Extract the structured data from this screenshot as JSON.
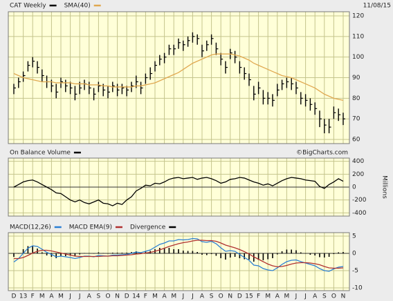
{
  "chart_data": [
    {
      "type": "ohlc",
      "date": "11/08/15",
      "series": [
        {
          "name": "CAT Weekly",
          "color": "#000000",
          "high": [
            87,
            90,
            93,
            98,
            100,
            98,
            94,
            91,
            89,
            87,
            90,
            89,
            88,
            86,
            88,
            89,
            88,
            85,
            88,
            87,
            86,
            88,
            87,
            87,
            86,
            88,
            91,
            88,
            92,
            95,
            98,
            101,
            102,
            106,
            106,
            109,
            108,
            110,
            112,
            111,
            106,
            108,
            111,
            107,
            102,
            98,
            104,
            103,
            98,
            95,
            92,
            86,
            88,
            84,
            83,
            82,
            87,
            89,
            90,
            90,
            88,
            83,
            82,
            80,
            78,
            74,
            70,
            70,
            76,
            75,
            73
          ],
          "low": [
            82,
            85,
            88,
            93,
            95,
            92,
            88,
            85,
            83,
            80,
            85,
            83,
            82,
            79,
            82,
            84,
            82,
            79,
            83,
            81,
            80,
            83,
            81,
            82,
            81,
            83,
            85,
            82,
            87,
            89,
            93,
            96,
            97,
            101,
            101,
            104,
            103,
            105,
            107,
            106,
            100,
            103,
            106,
            101,
            96,
            92,
            99,
            97,
            92,
            89,
            86,
            79,
            82,
            77,
            77,
            76,
            81,
            84,
            85,
            84,
            82,
            77,
            76,
            74,
            72,
            66,
            63,
            63,
            70,
            69,
            67
          ],
          "close": [
            85,
            88,
            91,
            96,
            98,
            95,
            91,
            88,
            86,
            83,
            88,
            86,
            85,
            82,
            85,
            87,
            85,
            82,
            86,
            84,
            83,
            86,
            84,
            85,
            84,
            86,
            88,
            85,
            90,
            92,
            96,
            99,
            100,
            104,
            104,
            107,
            106,
            108,
            110,
            109,
            103,
            106,
            109,
            104,
            99,
            95,
            102,
            100,
            95,
            92,
            89,
            82,
            85,
            80,
            80,
            79,
            84,
            87,
            88,
            87,
            85,
            80,
            79,
            77,
            75,
            70,
            67,
            66,
            73,
            72,
            70
          ]
        },
        {
          "name": "SMA(40)",
          "color": "#e0a850",
          "values": [
            92,
            91,
            90,
            89.5,
            89,
            88.5,
            88,
            88,
            88,
            87.5,
            87.5,
            87.5,
            87.5,
            87,
            87,
            87,
            86.5,
            86.5,
            86.5,
            86,
            86,
            85.5,
            85.5,
            85.5,
            85.5,
            85.5,
            86,
            86,
            86.5,
            87,
            87.5,
            88.5,
            89.5,
            90.5,
            91.5,
            92.5,
            94,
            95.5,
            97,
            98,
            99,
            100,
            101,
            101.5,
            101.5,
            101.5,
            101.5,
            101,
            100.5,
            99.5,
            98.5,
            97,
            96,
            95,
            94,
            93,
            92,
            91,
            90.5,
            90,
            89,
            88,
            87,
            86,
            85,
            83.5,
            82,
            81,
            80,
            79.5,
            79
          ]
        }
      ],
      "ylim": [
        58,
        122
      ],
      "yticks": [
        60,
        70,
        80,
        90,
        100,
        110,
        120
      ],
      "grid": true
    },
    {
      "type": "line",
      "credit": "©BigCharts.com",
      "ylabel": "Millions",
      "series": [
        {
          "name": "On Balance Volume",
          "color": "#000000",
          "values": [
            0,
            40,
            80,
            100,
            110,
            80,
            40,
            0,
            -40,
            -90,
            -100,
            -150,
            -200,
            -230,
            -200,
            -240,
            -260,
            -230,
            -200,
            -250,
            -260,
            -290,
            -250,
            -270,
            -200,
            -150,
            -60,
            -20,
            30,
            20,
            60,
            50,
            80,
            120,
            140,
            150,
            130,
            140,
            150,
            120,
            140,
            150,
            130,
            100,
            60,
            80,
            120,
            130,
            150,
            140,
            110,
            80,
            60,
            30,
            50,
            20,
            60,
            100,
            130,
            150,
            140,
            130,
            110,
            100,
            90,
            10,
            -20,
            40,
            80,
            130,
            90
          ]
        }
      ],
      "ylim": [
        -450,
        450
      ],
      "yticks": [
        -400,
        -200,
        0,
        200,
        400
      ],
      "grid": true
    },
    {
      "type": "line",
      "categories": [
        "D",
        null,
        "13",
        null,
        "F",
        null,
        "M",
        null,
        "A",
        null,
        "M",
        null,
        "J",
        null,
        "J",
        null,
        "A",
        null,
        "S",
        null,
        "O",
        null,
        "N",
        null,
        "D",
        null,
        "14",
        null,
        "F",
        null,
        "M",
        null,
        "A",
        null,
        "M",
        null,
        "J",
        null,
        "J",
        null,
        "A",
        null,
        "S",
        null,
        "O",
        null,
        "N",
        null,
        "D",
        null,
        "15",
        null,
        "F",
        null,
        "M",
        null,
        "A",
        null,
        "M",
        null,
        "J",
        null,
        "J",
        null,
        "A",
        null,
        "S",
        null,
        "O",
        null,
        "N"
      ],
      "series": [
        {
          "name": "MACD(12,26)",
          "color": "#2a7fd4",
          "values": [
            -2.5,
            -1.5,
            0,
            1.5,
            2.2,
            2,
            1.2,
            0.3,
            -0.3,
            -1,
            -0.8,
            -1,
            -1.2,
            -1.5,
            -1.2,
            -0.8,
            -0.8,
            -1,
            -0.6,
            -0.7,
            -0.8,
            -0.5,
            -0.5,
            -0.4,
            -0.3,
            0,
            0.4,
            0.2,
            0.6,
            1,
            1.8,
            2.6,
            3,
            3.6,
            3.6,
            4,
            3.9,
            4,
            4.3,
            4.2,
            3.4,
            3.2,
            3.5,
            2.8,
            1.6,
            0.6,
            0.8,
            0.6,
            -0.3,
            -1.2,
            -2,
            -3.4,
            -3.6,
            -4.4,
            -4.8,
            -5,
            -4.2,
            -3.2,
            -2.4,
            -2,
            -1.9,
            -2.4,
            -2.8,
            -3.2,
            -3.6,
            -4.4,
            -5,
            -5.2,
            -4.5,
            -4,
            -3.8
          ]
        },
        {
          "name": "MACD EMA(9)",
          "color": "#b03030",
          "values": [
            -1.5,
            -1.5,
            -1.2,
            -0.6,
            0.1,
            0.6,
            0.9,
            0.9,
            0.7,
            0.4,
            0.1,
            -0.2,
            -0.5,
            -0.8,
            -0.9,
            -0.9,
            -0.9,
            -0.9,
            -0.9,
            -0.8,
            -0.8,
            -0.7,
            -0.7,
            -0.6,
            -0.5,
            -0.4,
            -0.2,
            -0.1,
            0.1,
            0.3,
            0.6,
            1,
            1.5,
            2,
            2.4,
            2.8,
            3.1,
            3.3,
            3.6,
            3.8,
            3.8,
            3.7,
            3.7,
            3.5,
            3,
            2.4,
            2,
            1.6,
            1.1,
            0.5,
            -0.2,
            -1,
            -1.7,
            -2.4,
            -3.1,
            -3.6,
            -3.9,
            -3.8,
            -3.5,
            -3.1,
            -2.8,
            -2.7,
            -2.7,
            -2.8,
            -3,
            -3.3,
            -3.8,
            -4.2,
            -4.3,
            -4.3,
            -4.2
          ]
        },
        {
          "name": "Divergence",
          "color": "#000000",
          "type": "bar",
          "values": [
            -1,
            0,
            1.2,
            2.1,
            2.1,
            1.4,
            0.3,
            -0.6,
            -1,
            -1.4,
            -0.9,
            -0.8,
            -0.7,
            -0.7,
            -0.3,
            0.1,
            0.1,
            -0.1,
            0.3,
            0.1,
            0,
            0.2,
            0.2,
            0.2,
            0.2,
            0.4,
            0.6,
            0.3,
            0.5,
            0.7,
            1.2,
            1.6,
            1.5,
            1.6,
            1.2,
            1.2,
            0.8,
            0.7,
            0.7,
            0.4,
            -0.4,
            -0.5,
            -0.2,
            -0.7,
            -1.4,
            -1.8,
            -1.2,
            -1,
            -1.4,
            -1.7,
            -1.8,
            -2.4,
            -1.9,
            -2,
            -1.7,
            -1.4,
            -0.3,
            0.6,
            1.1,
            1.1,
            0.9,
            0.3,
            -0.1,
            -0.4,
            -0.6,
            -1.1,
            -1.2,
            -1,
            -0.2,
            0.3,
            0.4
          ]
        }
      ],
      "ylim": [
        -10.8,
        6
      ],
      "yticks": [
        -10,
        -5,
        0,
        5
      ],
      "grid": true
    }
  ]
}
